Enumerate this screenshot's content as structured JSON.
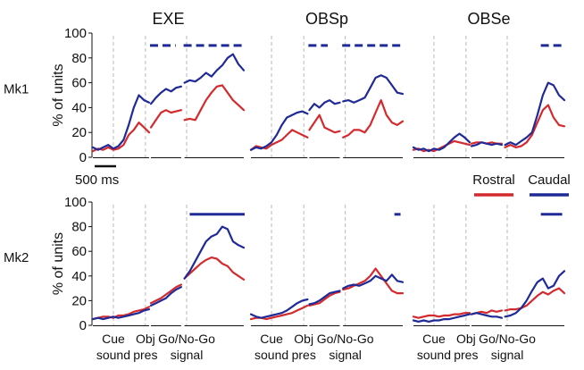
{
  "chart_data": {
    "type": "line",
    "ylabel": "% of units",
    "ylim": [
      0,
      100
    ],
    "yticks": [
      0,
      20,
      40,
      60,
      80,
      100
    ],
    "scale_bar": "500 ms",
    "legend": {
      "placement": "right, between rows",
      "entries": [
        {
          "name": "Rostral",
          "color": "#d42a2e"
        },
        {
          "name": "Caudal",
          "color": "#1f2a96"
        }
      ]
    },
    "columns": [
      "EXE",
      "OBSp",
      "OBSe"
    ],
    "rows": [
      "Mk1",
      "Mk2"
    ],
    "epochs": [
      {
        "label_top": "Cue",
        "label_bottom": "sound"
      },
      {
        "label_top": "Obj",
        "label_bottom": "pres"
      },
      {
        "label_top": "Go/No-Go",
        "label_bottom": "signal"
      }
    ],
    "colors": {
      "rostral": "#d42a2e",
      "caudal": "#1f2a96",
      "epoch_line": "#b8b8b8"
    },
    "panels": [
      {
        "row": "Mk1",
        "column": "EXE",
        "segments": [
          {
            "caudal": [
              8,
              6,
              8,
              10,
              7,
              9,
              14,
              26,
              40,
              50,
              46,
              44
            ],
            "rostral": [
              5,
              7,
              6,
              8,
              6,
              7,
              10,
              18,
              22,
              28,
              24,
              20
            ]
          },
          {
            "caudal": [
              43,
              48,
              52,
              55,
              53,
              56,
              57
            ],
            "rostral": [
              24,
              30,
              36,
              38,
              36,
              37,
              38
            ]
          },
          {
            "caudal": [
              60,
              62,
              61,
              64,
              68,
              65,
              70,
              74,
              80,
              83,
              75,
              70
            ],
            "rostral": [
              30,
              31,
              30,
              38,
              46,
              52,
              57,
              58,
              52,
              46,
              42,
              38
            ]
          }
        ],
        "sig_bars": [
          {
            "segment": 1,
            "start": 0.0,
            "end": 0.8
          },
          {
            "segment": 2,
            "start": 0.0,
            "end": 1.0
          }
        ]
      },
      {
        "row": "Mk1",
        "column": "OBSp",
        "segments": [
          {
            "caudal": [
              6,
              8,
              7,
              9,
              12,
              18,
              26,
              32,
              34,
              36,
              37,
              35
            ],
            "rostral": [
              6,
              9,
              8,
              7,
              10,
              12,
              14,
              18,
              22,
              20,
              18,
              16
            ]
          },
          {
            "caudal": [
              38,
              43,
              40,
              44,
              46,
              43,
              44
            ],
            "rostral": [
              22,
              28,
              34,
              24,
              22,
              20,
              21
            ]
          },
          {
            "caudal": [
              45,
              46,
              44,
              46,
              48,
              56,
              64,
              66,
              64,
              58,
              52,
              51
            ],
            "rostral": [
              16,
              18,
              22,
              22,
              20,
              26,
              36,
              46,
              34,
              28,
              26,
              29
            ]
          }
        ],
        "sig_bars": [
          {
            "segment": 1,
            "start": 0.0,
            "end": 0.6
          },
          {
            "segment": 2,
            "start": 0.0,
            "end": 1.0
          }
        ]
      },
      {
        "row": "Mk1",
        "column": "OBSe",
        "segments": [
          {
            "caudal": [
              8,
              6,
              7,
              5,
              7,
              6,
              8,
              12,
              16,
              19,
              16,
              12
            ],
            "rostral": [
              6,
              7,
              5,
              6,
              5,
              7,
              9,
              11,
              13,
              12,
              11,
              10
            ]
          },
          {
            "caudal": [
              9,
              10,
              12,
              11,
              10,
              11,
              10
            ],
            "rostral": [
              11,
              12,
              12,
              11,
              12,
              11,
              11
            ]
          },
          {
            "caudal": [
              10,
              12,
              10,
              13,
              16,
              20,
              34,
              50,
              60,
              58,
              50,
              46
            ],
            "rostral": [
              8,
              10,
              8,
              9,
              12,
              18,
              28,
              38,
              42,
              32,
              26,
              25
            ]
          }
        ],
        "sig_bars": [
          {
            "segment": 2,
            "start": 0.6,
            "end": 1.0
          }
        ]
      },
      {
        "row": "Mk2",
        "column": "EXE",
        "segments": [
          {
            "caudal": [
              5,
              6,
              5,
              6,
              7,
              6,
              7,
              8,
              9,
              10,
              12,
              13
            ],
            "rostral": [
              5,
              6,
              7,
              7,
              6,
              8,
              8,
              9,
              11,
              12,
              13,
              15
            ]
          },
          {
            "caudal": [
              16,
              18,
              20,
              22,
              26,
              29,
              31
            ],
            "rostral": [
              18,
              20,
              22,
              25,
              28,
              31,
              33
            ]
          },
          {
            "caudal": [
              38,
              44,
              52,
              60,
              68,
              72,
              74,
              80,
              78,
              68,
              65,
              63
            ],
            "rostral": [
              38,
              42,
              46,
              50,
              53,
              55,
              54,
              50,
              48,
              43,
              40,
              37
            ]
          }
        ],
        "sig_bars": [
          {
            "segment": 2,
            "start": 0.1,
            "end": 1.0
          }
        ]
      },
      {
        "row": "Mk2",
        "column": "OBSp",
        "segments": [
          {
            "caudal": [
              9,
              7,
              6,
              7,
              8,
              9,
              10,
              12,
              15,
              18,
              20,
              21
            ],
            "rostral": [
              5,
              6,
              6,
              5,
              6,
              7,
              8,
              9,
              10,
              12,
              14,
              16
            ]
          },
          {
            "caudal": [
              17,
              18,
              20,
              23,
              26,
              27,
              28
            ],
            "rostral": [
              16,
              17,
              18,
              21,
              24,
              26,
              27
            ]
          },
          {
            "caudal": [
              30,
              32,
              33,
              32,
              34,
              36,
              40,
              38,
              36,
              41,
              36,
              35
            ],
            "rostral": [
              29,
              30,
              32,
              34,
              36,
              40,
              46,
              40,
              34,
              28,
              26,
              26
            ]
          }
        ],
        "sig_bars": [
          {
            "segment": 2,
            "start": 0.85,
            "end": 0.95
          }
        ]
      },
      {
        "row": "Mk2",
        "column": "OBSe",
        "segments": [
          {
            "caudal": [
              4,
              3,
              4,
              3,
              4,
              4,
              5,
              5,
              6,
              7,
              8,
              9
            ],
            "rostral": [
              7,
              6,
              7,
              8,
              8,
              7,
              8,
              8,
              9,
              9,
              10,
              10
            ]
          },
          {
            "caudal": [
              9,
              10,
              9,
              8,
              7,
              7,
              6
            ],
            "rostral": [
              9,
              10,
              11,
              10,
              12,
              11,
              12
            ]
          },
          {
            "caudal": [
              7,
              8,
              10,
              14,
              20,
              28,
              35,
              38,
              30,
              32,
              40,
              44
            ],
            "rostral": [
              12,
              13,
              13,
              14,
              16,
              20,
              24,
              27,
              25,
              28,
              30,
              26
            ]
          }
        ],
        "sig_bars": [
          {
            "segment": 2,
            "start": 0.6,
            "end": 0.95
          }
        ]
      }
    ]
  }
}
